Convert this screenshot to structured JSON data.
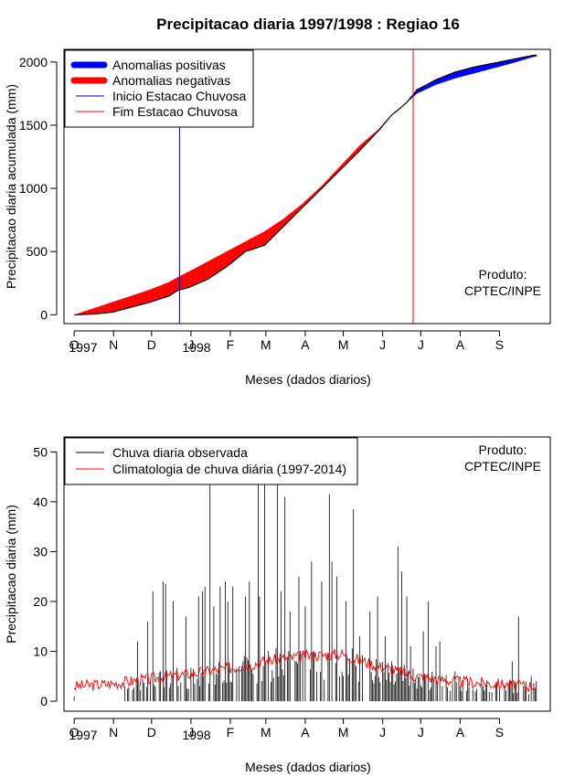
{
  "title": "Precipitacao diaria 1997/1998 : Regiao 16",
  "produto_line1": "Produto:",
  "produto_line2": "CPTEC/INPE",
  "xlabel": "Meses (dados diarios)",
  "month_ticks": [
    "O",
    "N",
    "D",
    "J",
    "F",
    "M",
    "A",
    "M",
    "J",
    "J",
    "A",
    "S"
  ],
  "year_labels": [
    "1997",
    "1998"
  ],
  "colors": {
    "positive": "#0000ff",
    "negative": "#ff0000",
    "start_line": "#0000aa",
    "end_line": "#ff0000",
    "observed": "#000000",
    "climatology": "#ff0000"
  },
  "chart_data": [
    {
      "type": "area",
      "ylabel": "Precipitacao diaria acumulada (mm)",
      "ylim": [
        -70,
        2100
      ],
      "yticks": [
        0,
        500,
        1000,
        1500,
        2000
      ],
      "xlim_days": [
        -8,
        375
      ],
      "legend": [
        {
          "label": "Anomalias positivas",
          "kind": "thick",
          "color": "#0000ff"
        },
        {
          "label": "Anomalias negativas",
          "kind": "thick",
          "color": "#ff0000"
        },
        {
          "label": "Inicio Estacao Chuvosa",
          "kind": "thin",
          "color": "#0000aa"
        },
        {
          "label": "Fim Estacao Chuvosa",
          "kind": "thin",
          "color": "#ff0000"
        }
      ],
      "legend_position": "top-left",
      "start_day": 83,
      "end_day": 267,
      "day_index": [
        0,
        15,
        30,
        45,
        60,
        75,
        82,
        90,
        105,
        120,
        135,
        150,
        165,
        180,
        195,
        210,
        225,
        240,
        250,
        255,
        262,
        270,
        285,
        300,
        315,
        330,
        345,
        360,
        364
      ],
      "observed_accum": [
        0,
        5,
        20,
        60,
        100,
        150,
        195,
        215,
        280,
        380,
        500,
        550,
        700,
        850,
        1000,
        1150,
        1300,
        1460,
        1580,
        1620,
        1680,
        1780,
        1860,
        1920,
        1960,
        1990,
        2020,
        2050,
        2055
      ],
      "climatology_accum": [
        0,
        50,
        100,
        150,
        200,
        260,
        300,
        340,
        420,
        500,
        580,
        660,
        760,
        880,
        1020,
        1180,
        1340,
        1470,
        1580,
        1620,
        1680,
        1750,
        1820,
        1870,
        1910,
        1950,
        1990,
        2035,
        2045
      ]
    },
    {
      "type": "line",
      "ylabel": "Precipitacao diaria (mm)",
      "ylim": [
        -2,
        53
      ],
      "yticks": [
        0,
        10,
        20,
        30,
        40,
        50
      ],
      "xlim_days": [
        -8,
        375
      ],
      "legend": [
        {
          "label": "Chuva diaria observada",
          "color": "#000000"
        },
        {
          "label": "Climatologia de chuva diária (1997-2014)",
          "color": "#ff0000"
        }
      ],
      "legend_position": "top-left",
      "observed_peaks": [
        {
          "day": 0,
          "value": 1
        },
        {
          "day": 40,
          "value": 3
        },
        {
          "day": 50,
          "value": 12
        },
        {
          "day": 58,
          "value": 16
        },
        {
          "day": 62,
          "value": 22
        },
        {
          "day": 70,
          "value": 24
        },
        {
          "day": 72,
          "value": 23.5
        },
        {
          "day": 78,
          "value": 20
        },
        {
          "day": 88,
          "value": 17
        },
        {
          "day": 98,
          "value": 21
        },
        {
          "day": 101,
          "value": 22
        },
        {
          "day": 103,
          "value": 23
        },
        {
          "day": 107,
          "value": 45
        },
        {
          "day": 110,
          "value": 19
        },
        {
          "day": 115,
          "value": 23
        },
        {
          "day": 119,
          "value": 24
        },
        {
          "day": 121,
          "value": 20
        },
        {
          "day": 125,
          "value": 23
        },
        {
          "day": 130,
          "value": 7
        },
        {
          "day": 135,
          "value": 21
        },
        {
          "day": 138,
          "value": 24
        },
        {
          "day": 145,
          "value": 44
        },
        {
          "day": 146,
          "value": 21
        },
        {
          "day": 150,
          "value": 45
        },
        {
          "day": 160,
          "value": 47
        },
        {
          "day": 163,
          "value": 22
        },
        {
          "day": 166,
          "value": 41
        },
        {
          "day": 170,
          "value": 18
        },
        {
          "day": 177,
          "value": 25
        },
        {
          "day": 182,
          "value": 19
        },
        {
          "day": 187,
          "value": 28
        },
        {
          "day": 195,
          "value": 24
        },
        {
          "day": 201,
          "value": 41.5
        },
        {
          "day": 203,
          "value": 28
        },
        {
          "day": 207,
          "value": 25
        },
        {
          "day": 214,
          "value": 20
        },
        {
          "day": 220,
          "value": 38.5
        },
        {
          "day": 225,
          "value": 13
        },
        {
          "day": 233,
          "value": 18
        },
        {
          "day": 239,
          "value": 21
        },
        {
          "day": 245,
          "value": 13
        },
        {
          "day": 255,
          "value": 31
        },
        {
          "day": 258,
          "value": 26
        },
        {
          "day": 262,
          "value": 21
        },
        {
          "day": 265,
          "value": 11
        },
        {
          "day": 275,
          "value": 14
        },
        {
          "day": 279,
          "value": 20
        },
        {
          "day": 285,
          "value": 11
        },
        {
          "day": 288,
          "value": 12
        },
        {
          "day": 300,
          "value": 6
        },
        {
          "day": 322,
          "value": 3
        },
        {
          "day": 345,
          "value": 8
        },
        {
          "day": 350,
          "value": 17
        },
        {
          "day": 360,
          "value": 5
        },
        {
          "day": 364,
          "value": 4
        }
      ],
      "climatology_profile": [
        {
          "day": 0,
          "value": 3
        },
        {
          "day": 30,
          "value": 3.5
        },
        {
          "day": 60,
          "value": 4.5
        },
        {
          "day": 90,
          "value": 5.5
        },
        {
          "day": 120,
          "value": 6.5
        },
        {
          "day": 150,
          "value": 8
        },
        {
          "day": 180,
          "value": 9
        },
        {
          "day": 210,
          "value": 9.5
        },
        {
          "day": 240,
          "value": 7
        },
        {
          "day": 270,
          "value": 5
        },
        {
          "day": 300,
          "value": 4
        },
        {
          "day": 330,
          "value": 3.5
        },
        {
          "day": 364,
          "value": 3
        }
      ]
    }
  ]
}
